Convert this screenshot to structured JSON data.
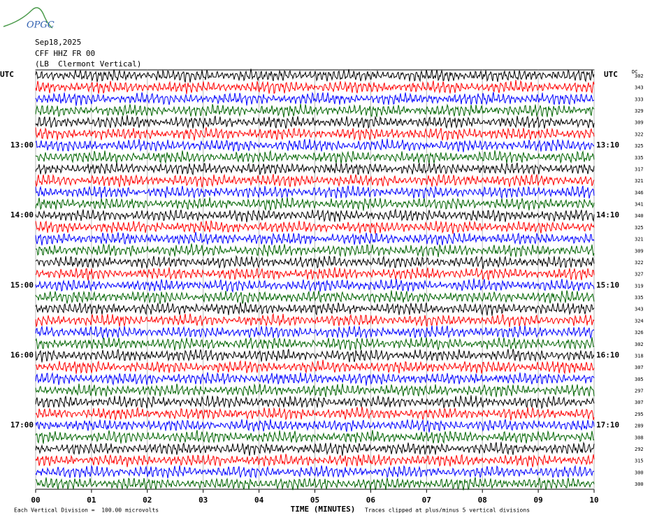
{
  "header": {
    "logo": "OPGC",
    "date": "Sep18,2025",
    "station": "CFF HHZ FR 00",
    "location": "(LB  Clermont Vertical)"
  },
  "chart_data": {
    "type": "helicorder",
    "left_axis_label": "UTC",
    "right_axis_label": "UTC",
    "dc_label": "DC",
    "colors": [
      "#000000",
      "#ff0000",
      "#0000ff",
      "#006400"
    ],
    "dc_offsets": [
      302,
      343,
      333,
      329,
      309,
      322,
      325,
      335,
      317,
      321,
      346,
      341,
      340,
      325,
      321,
      309,
      322,
      327,
      319,
      335,
      343,
      324,
      326,
      302,
      318,
      307,
      305,
      297,
      307,
      295,
      289,
      308,
      292,
      315,
      300,
      300
    ],
    "left_labels": [
      null,
      null,
      null,
      null,
      null,
      null,
      "13:00",
      null,
      null,
      null,
      null,
      null,
      "14:00",
      null,
      null,
      null,
      null,
      null,
      "15:00",
      null,
      null,
      null,
      null,
      null,
      "16:00",
      null,
      null,
      null,
      null,
      null,
      "17:00",
      null,
      null,
      null,
      null,
      null
    ],
    "right_labels": [
      null,
      null,
      null,
      null,
      null,
      null,
      "13:10",
      null,
      null,
      null,
      null,
      null,
      "14:10",
      null,
      null,
      null,
      null,
      null,
      "15:10",
      null,
      null,
      null,
      null,
      null,
      "16:10",
      null,
      null,
      null,
      null,
      null,
      "17:10",
      null,
      null,
      null,
      null,
      null
    ],
    "xlim": [
      0,
      10
    ],
    "xticks": [
      {
        "value": 0,
        "label": "00"
      },
      {
        "value": 1,
        "label": "01"
      },
      {
        "value": 2,
        "label": "02"
      },
      {
        "value": 3,
        "label": "03"
      },
      {
        "value": 4,
        "label": "04"
      },
      {
        "value": 5,
        "label": "05"
      },
      {
        "value": 6,
        "label": "06"
      },
      {
        "value": 7,
        "label": "07"
      },
      {
        "value": 8,
        "label": "08"
      },
      {
        "value": 9,
        "label": "09"
      },
      {
        "value": 10,
        "label": "10"
      }
    ],
    "xlabel": "TIME (MINUTES)",
    "scale_note": "Each Vertical Division =  100.00 microvolts",
    "clip_note": "Traces clipped at plus/minus 5 vertical divisions",
    "grid": true
  }
}
